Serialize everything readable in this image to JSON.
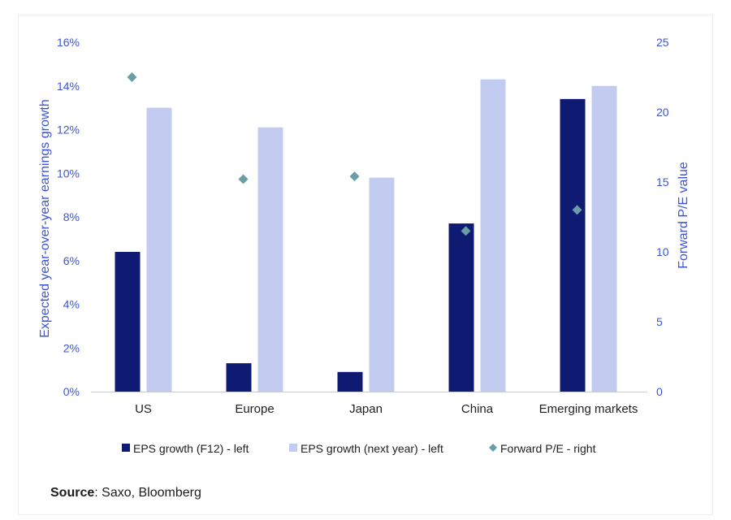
{
  "chart_data": {
    "type": "bar",
    "categories": [
      "US",
      "Europe",
      "Japan",
      "China",
      "Emerging markets"
    ],
    "series": [
      {
        "name": "EPS growth (F12) - left",
        "type": "bar",
        "axis": "left",
        "color": "#0f1a73",
        "values": [
          6.4,
          1.3,
          0.9,
          7.7,
          13.4
        ]
      },
      {
        "name": "EPS growth (next year) - left",
        "type": "bar",
        "axis": "left",
        "color": "#c2cbf0",
        "values": [
          13.0,
          12.1,
          9.8,
          14.3,
          14.0
        ]
      },
      {
        "name": "Forward P/E - right",
        "type": "scatter",
        "axis": "right",
        "marker": "diamond",
        "color": "#6a9ea6",
        "values": [
          22.5,
          15.2,
          15.4,
          11.5,
          13.0
        ]
      }
    ],
    "y_left": {
      "label": "Expected year-over-year earnings growth",
      "min": 0,
      "max": 16,
      "step": 2,
      "ticks": [
        "0%",
        "2%",
        "4%",
        "6%",
        "8%",
        "10%",
        "12%",
        "14%",
        "16%"
      ]
    },
    "y_right": {
      "label": "Forward P/E value",
      "min": 0,
      "max": 25,
      "step": 5,
      "ticks": [
        "0",
        "5",
        "10",
        "15",
        "20",
        "25"
      ]
    },
    "grid": false,
    "legend_position": "bottom",
    "axis_color": "#3d54d6"
  },
  "source": {
    "label": "Source",
    "text": ": Saxo, Bloomberg"
  }
}
